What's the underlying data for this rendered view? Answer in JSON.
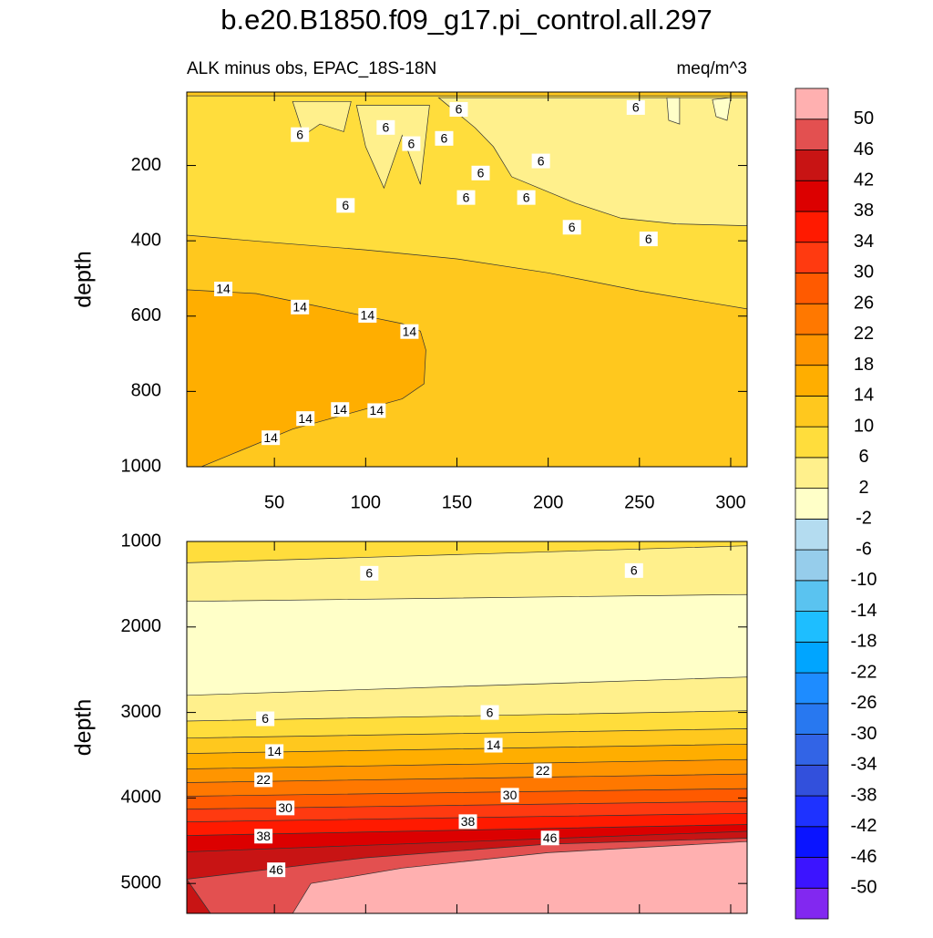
{
  "chart_data": [
    {
      "type": "contour",
      "title": "b.e20.B1850.f09_g17.pi_control.all.297",
      "subtitle_left": "ALK minus obs, EPAC_18S-18N",
      "subtitle_right": "meq/m^3",
      "ylabel": "depth",
      "xlim": [
        2,
        309
      ],
      "ylim": [
        5,
        1000
      ],
      "xticks": [
        50,
        100,
        150,
        200,
        250,
        300
      ],
      "yticks": [
        200,
        400,
        600,
        800,
        1000
      ],
      "y_inverted": true,
      "show_xtick_labels": true,
      "regions": [
        {
          "level": 10,
          "x": [
            2,
            309,
            309,
            2
          ],
          "y": [
            5,
            5,
            1000,
            1000
          ]
        },
        {
          "level": 6,
          "x": [
            2,
            309,
            309,
            250,
            200,
            150,
            100,
            50,
            2
          ],
          "y": [
            15,
            15,
            581,
            533,
            485,
            448,
            424,
            405,
            385
          ]
        },
        {
          "level": 2,
          "x": [
            140,
            309,
            309,
            270,
            240,
            215,
            195,
            180,
            170,
            160,
            150
          ],
          "y": [
            20,
            20,
            360,
            355,
            340,
            300,
            260,
            230,
            150,
            100,
            60
          ]
        },
        {
          "level": 2,
          "x": [
            95,
            135,
            130,
            120,
            110,
            100
          ],
          "y": [
            40,
            40,
            250,
            120,
            260,
            150
          ]
        },
        {
          "level": 2,
          "x": [
            60,
            92,
            88,
            75,
            66
          ],
          "y": [
            30,
            30,
            110,
            90,
            120
          ]
        },
        {
          "level": -2,
          "x": [
            265,
            272,
            272,
            266
          ],
          "y": [
            20,
            20,
            90,
            80
          ]
        },
        {
          "level": -2,
          "x": [
            290,
            300,
            298,
            292
          ],
          "y": [
            25,
            20,
            80,
            70
          ]
        },
        {
          "level": 14,
          "x": [
            2,
            40,
            70,
            100,
            120,
            130,
            133,
            132,
            120,
            90,
            60,
            30,
            10,
            2
          ],
          "y": [
            530,
            540,
            570,
            600,
            620,
            640,
            690,
            780,
            820,
            860,
            900,
            960,
            1000,
            1000
          ]
        }
      ],
      "contour_labels": [
        {
          "value": 6,
          "x": 64,
          "y": 118
        },
        {
          "value": 6,
          "x": 111,
          "y": 99
        },
        {
          "value": 6,
          "x": 125,
          "y": 142
        },
        {
          "value": 6,
          "x": 143,
          "y": 128
        },
        {
          "value": 6,
          "x": 151,
          "y": 51
        },
        {
          "value": 6,
          "x": 163,
          "y": 220
        },
        {
          "value": 6,
          "x": 155,
          "y": 285
        },
        {
          "value": 6,
          "x": 188,
          "y": 285
        },
        {
          "value": 6,
          "x": 196,
          "y": 188
        },
        {
          "value": 6,
          "x": 213,
          "y": 364
        },
        {
          "value": 6,
          "x": 255,
          "y": 395
        },
        {
          "value": 6,
          "x": 248,
          "y": 46
        },
        {
          "value": 6,
          "x": 89,
          "y": 306
        },
        {
          "value": 14,
          "x": 22,
          "y": 528
        },
        {
          "value": 14,
          "x": 64,
          "y": 576
        },
        {
          "value": 14,
          "x": 101,
          "y": 598
        },
        {
          "value": 14,
          "x": 124,
          "y": 641
        },
        {
          "value": 14,
          "x": 86,
          "y": 848
        },
        {
          "value": 14,
          "x": 67,
          "y": 872
        },
        {
          "value": 14,
          "x": 106,
          "y": 851
        },
        {
          "value": 14,
          "x": 48,
          "y": 923
        }
      ]
    },
    {
      "type": "contour",
      "ylabel": "depth",
      "xlim": [
        2,
        309
      ],
      "ylim": [
        1000,
        5350
      ],
      "xticks": [
        50,
        100,
        150,
        200,
        250,
        300
      ],
      "yticks": [
        1000,
        2000,
        3000,
        4000,
        5000
      ],
      "y_inverted": true,
      "show_xtick_labels": false,
      "regions": [
        {
          "level": 6,
          "x": [
            2,
            309,
            309,
            2
          ],
          "y": [
            1000,
            1000,
            5350,
            5350
          ]
        },
        {
          "level": 2,
          "x": [
            2,
            309,
            309,
            2
          ],
          "y": [
            1250,
            1050,
            5350,
            5350
          ]
        },
        {
          "level": -2,
          "x": [
            2,
            309,
            309,
            2
          ],
          "y": [
            1700,
            1620,
            5350,
            5350
          ]
        },
        {
          "level": 2,
          "x": [
            2,
            309,
            309,
            2
          ],
          "y": [
            2800,
            2585,
            5350,
            5350
          ]
        },
        {
          "level": 6,
          "x": [
            2,
            309,
            309,
            2
          ],
          "y": [
            3100,
            2980,
            5350,
            5350
          ]
        },
        {
          "level": 10,
          "x": [
            2,
            309,
            309,
            2
          ],
          "y": [
            3300,
            3190,
            5350,
            5350
          ]
        },
        {
          "level": 14,
          "x": [
            2,
            309,
            309,
            2
          ],
          "y": [
            3480,
            3370,
            5350,
            5350
          ]
        },
        {
          "level": 18,
          "x": [
            2,
            309,
            309,
            2
          ],
          "y": [
            3660,
            3550,
            5350,
            5350
          ]
        },
        {
          "level": 22,
          "x": [
            2,
            309,
            309,
            2
          ],
          "y": [
            3820,
            3720,
            5350,
            5350
          ]
        },
        {
          "level": 26,
          "x": [
            2,
            309,
            309,
            2
          ],
          "y": [
            3980,
            3890,
            5350,
            5350
          ]
        },
        {
          "level": 30,
          "x": [
            2,
            309,
            309,
            2
          ],
          "y": [
            4130,
            4040,
            5350,
            5350
          ]
        },
        {
          "level": 34,
          "x": [
            2,
            309,
            309,
            2
          ],
          "y": [
            4280,
            4180,
            5350,
            5350
          ]
        },
        {
          "level": 38,
          "x": [
            2,
            309,
            309,
            2
          ],
          "y": [
            4440,
            4310,
            5350,
            5350
          ]
        },
        {
          "level": 42,
          "x": [
            2,
            309,
            309,
            2
          ],
          "y": [
            4630,
            4390,
            5350,
            5350
          ]
        },
        {
          "level": 46,
          "x": [
            2,
            100,
            200,
            309,
            309,
            15
          ],
          "y": [
            4950,
            4700,
            4540,
            4470,
            5350,
            5350
          ]
        },
        {
          "level": 50,
          "x": [
            60,
            70,
            120,
            200,
            309,
            309
          ],
          "y": [
            5350,
            5000,
            4820,
            4640,
            4510,
            5350
          ]
        }
      ],
      "contour_labels": [
        {
          "value": 6,
          "x": 102,
          "y": 1372
        },
        {
          "value": 6,
          "x": 247,
          "y": 1340
        },
        {
          "value": 6,
          "x": 45,
          "y": 3074
        },
        {
          "value": 6,
          "x": 168,
          "y": 3000
        },
        {
          "value": 14,
          "x": 50,
          "y": 3457
        },
        {
          "value": 14,
          "x": 170,
          "y": 3383
        },
        {
          "value": 22,
          "x": 44,
          "y": 3787
        },
        {
          "value": 22,
          "x": 197,
          "y": 3681
        },
        {
          "value": 30,
          "x": 56,
          "y": 4117
        },
        {
          "value": 30,
          "x": 179,
          "y": 3968
        },
        {
          "value": 38,
          "x": 44,
          "y": 4447
        },
        {
          "value": 38,
          "x": 156,
          "y": 4277
        },
        {
          "value": 46,
          "x": 51,
          "y": 4840
        },
        {
          "value": 46,
          "x": 201,
          "y": 4468
        }
      ]
    }
  ],
  "colorbar": {
    "levels": [
      -50,
      -46,
      -42,
      -38,
      -34,
      -30,
      -26,
      -22,
      -18,
      -14,
      -10,
      -6,
      -2,
      2,
      6,
      10,
      14,
      18,
      22,
      26,
      30,
      34,
      38,
      42,
      46,
      50
    ],
    "colors": [
      "#8228f0",
      "#3c14ff",
      "#0a14ff",
      "#1e32ff",
      "#3250dc",
      "#3264e6",
      "#2878f0",
      "#1e8cff",
      "#00a5ff",
      "#1ebeff",
      "#5ac3f0",
      "#96cdeb",
      "#b4dcf0",
      "#ffffc8",
      "#fff08c",
      "#ffdd3c",
      "#ffc81e",
      "#ffae00",
      "#ff9500",
      "#ff7800",
      "#ff5a00",
      "#ff3a10",
      "#ff1a00",
      "#dc0000",
      "#c81414",
      "#e35050",
      "#ffb0b0"
    ]
  }
}
